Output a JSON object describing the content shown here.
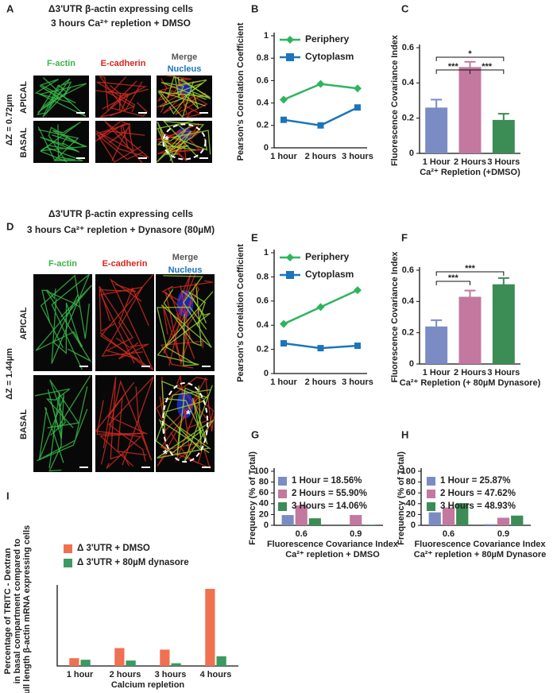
{
  "image_panels": [
    {
      "panel": "A",
      "title": [
        "Δ3'UTR β-actin expressing cells",
        "3 hours Ca²⁺ repletion + DMSO"
      ],
      "columns": [
        "F-actin",
        "E-cadherin",
        "Merge",
        "Nucleus"
      ],
      "rows": [
        "APICAL",
        "BASAL"
      ],
      "z_label": "ΔZ = 0.72µm",
      "markers": [
        "*"
      ]
    },
    {
      "panel": "D",
      "title": [
        "Δ3'UTR β-actin expressing cells",
        "3 hours Ca²⁺ repletion + Dynasore (80µM)"
      ],
      "columns": [
        "F-actin",
        "E-cadherin",
        "Merge",
        "Nucleus"
      ],
      "rows": [
        "APICAL",
        "BASAL"
      ],
      "z_label": "ΔZ = 1.44µm",
      "markers": [
        "*",
        "*"
      ]
    }
  ],
  "chart_data": [
    {
      "panel": "B",
      "type": "line",
      "ylabel": "Pearson's Correlation Coefficient",
      "categories": [
        "1 hour",
        "2 hours",
        "3 hours"
      ],
      "series": [
        {
          "name": "Periphery",
          "color": "#2db55d",
          "values": [
            0.43,
            0.57,
            0.53
          ]
        },
        {
          "name": "Cytoplasm",
          "color": "#1b75bc",
          "values": [
            0.25,
            0.2,
            0.36
          ]
        }
      ],
      "ylim": [
        0,
        1
      ],
      "yticks": [
        0,
        0.2,
        0.4,
        0.6,
        0.8,
        1
      ]
    },
    {
      "panel": "C",
      "type": "bar",
      "ylabel": "Fluorescence Covariance Index",
      "xlabel": [
        "Ca²⁺ Repletion (+DMSO)"
      ],
      "categories": [
        "1 Hour",
        "2 Hours",
        "3 Hours"
      ],
      "values": [
        0.26,
        0.49,
        0.19
      ],
      "errors": [
        0.045,
        0.03,
        0.035
      ],
      "colors": [
        "#7b8cc4",
        "#c2789f",
        "#3c8c55"
      ],
      "ylim": [
        0,
        0.6
      ],
      "yticks": [
        0,
        0.2,
        0.4,
        0.6
      ],
      "annotations": [
        "*",
        "***",
        "***"
      ]
    },
    {
      "panel": "E",
      "type": "line",
      "ylabel": "Pearson's Correlation Coefficient",
      "categories": [
        "1 hour",
        "2 hours",
        "3 hours"
      ],
      "series": [
        {
          "name": "Periphery",
          "color": "#2db55d",
          "values": [
            0.41,
            0.55,
            0.69
          ]
        },
        {
          "name": "Cytoplasm",
          "color": "#1b75bc",
          "values": [
            0.25,
            0.21,
            0.23
          ]
        }
      ],
      "ylim": [
        0,
        1
      ],
      "yticks": [
        0,
        0.2,
        0.4,
        0.6,
        0.8,
        1
      ]
    },
    {
      "panel": "F",
      "type": "bar",
      "ylabel": "Fluorescence Covariance Index",
      "xlabel": [
        "Ca²⁺ Repletion (+ 80µM Dynasore)"
      ],
      "categories": [
        "1 Hour",
        "2 Hours",
        "3 Hours"
      ],
      "values": [
        0.24,
        0.43,
        0.51
      ],
      "errors": [
        0.04,
        0.04,
        0.04
      ],
      "colors": [
        "#7b8cc4",
        "#c2789f",
        "#3c8c55"
      ],
      "ylim": [
        0,
        0.6
      ],
      "yticks": [
        0,
        0.2,
        0.4,
        0.6
      ],
      "annotations": [
        "***",
        "***"
      ]
    },
    {
      "panel": "G",
      "type": "bar",
      "ylabel": "Frequency (% of Total)",
      "xlabel": [
        "Fluorescence Covariance Index",
        "Ca²⁺ repletion + DMSO"
      ],
      "categories": [
        "0.6",
        "0.9"
      ],
      "series": [
        {
          "name": "1 Hour = 18.56%",
          "color": "#7b8cc4",
          "values": [
            19,
            0
          ]
        },
        {
          "name": "2 Hours = 55.90%",
          "color": "#c2789f",
          "values": [
            37,
            19
          ]
        },
        {
          "name": "3 Hours = 14.06%",
          "color": "#3c8c55",
          "values": [
            13,
            1
          ]
        }
      ],
      "ylim": [
        0,
        100
      ],
      "yticks": [
        0,
        20,
        40,
        60,
        80,
        100
      ]
    },
    {
      "panel": "H",
      "type": "bar",
      "ylabel": "Frequency (% of Total)",
      "xlabel": [
        "Fluorescence Covariance Index",
        "Ca²⁺ repletion + 80µM Dynasore"
      ],
      "categories": [
        "0.6",
        "0.9"
      ],
      "series": [
        {
          "name": "1 Hour = 25.87%",
          "color": "#7b8cc4",
          "values": [
            24,
            2
          ]
        },
        {
          "name": "2 Hours = 47.62%",
          "color": "#c2789f",
          "values": [
            33,
            14
          ]
        },
        {
          "name": "3 Hours = 48.93%",
          "color": "#3c8c55",
          "values": [
            41,
            18
          ]
        }
      ],
      "ylim": [
        0,
        100
      ],
      "yticks": [
        0,
        20,
        40,
        60,
        80,
        100
      ]
    },
    {
      "panel": "I",
      "type": "bar",
      "ylabel": [
        "Percentage of TRITC - Dextran",
        "in basal compartment compared to",
        "full length β-actin mRNA expressing cells"
      ],
      "xlabel": [
        "Calcium repletion"
      ],
      "categories": [
        "1 hour",
        "2 hours",
        "3 hours",
        "4 hours"
      ],
      "series": [
        {
          "name": "Δ 3'UTR + DMSO",
          "color": "#f07052",
          "values": [
            2,
            4.6,
            4.2,
            19.8
          ]
        },
        {
          "name": "Δ 3'UTR + 80µM dynasore",
          "color": "#3a9a60",
          "values": [
            1.6,
            1.4,
            0.7,
            2.5
          ]
        }
      ],
      "ylim": [
        0,
        20
      ]
    }
  ]
}
